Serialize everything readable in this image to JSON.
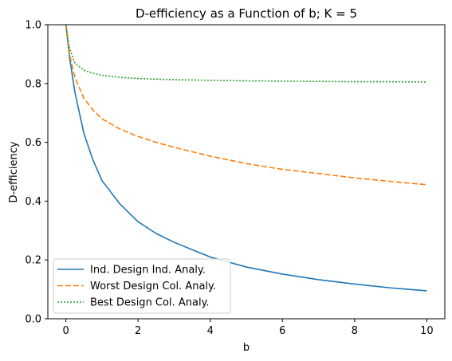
{
  "chart_data": {
    "type": "line",
    "title": "D-efficiency as a Function of b; K = 5",
    "xlabel": "b",
    "ylabel": "D-efficiency",
    "xlim": [
      -0.5,
      10.5
    ],
    "ylim": [
      0.0,
      1.0
    ],
    "xticks": [
      0,
      2,
      4,
      6,
      8,
      10
    ],
    "yticks": [
      0.0,
      0.2,
      0.4,
      0.6,
      0.8,
      1.0
    ],
    "xtick_labels": [
      "0",
      "2",
      "4",
      "6",
      "8",
      "10"
    ],
    "ytick_labels": [
      "0.0",
      "0.2",
      "0.4",
      "0.6",
      "0.8",
      "1.0"
    ],
    "legend_position": "lower-left",
    "grid": false,
    "x": [
      0.0,
      0.1,
      0.25,
      0.5,
      0.75,
      1.0,
      1.5,
      2.0,
      2.5,
      3.0,
      4.0,
      5.0,
      6.0,
      7.0,
      8.0,
      9.0,
      10.0
    ],
    "series": [
      {
        "name": "Ind. Design Ind. Analy.",
        "color": "#1f77b4",
        "dash": "solid",
        "values": [
          1.0,
          0.89,
          0.77,
          0.63,
          0.54,
          0.47,
          0.39,
          0.33,
          0.29,
          0.26,
          0.21,
          0.176,
          0.152,
          0.133,
          0.118,
          0.105,
          0.095
        ]
      },
      {
        "name": "Worst Design Col. Analy.",
        "color": "#ff7f0e",
        "dash": "dashed",
        "values": [
          1.0,
          0.9,
          0.82,
          0.75,
          0.71,
          0.68,
          0.645,
          0.62,
          0.6,
          0.583,
          0.553,
          0.528,
          0.508,
          0.494,
          0.479,
          0.467,
          0.456
        ]
      },
      {
        "name": "Best Design Col. Analy.",
        "color": "#2ca02c",
        "dash": "dotted",
        "values": [
          1.0,
          0.92,
          0.87,
          0.845,
          0.835,
          0.828,
          0.821,
          0.817,
          0.815,
          0.813,
          0.811,
          0.809,
          0.808,
          0.807,
          0.806,
          0.806,
          0.805
        ]
      }
    ]
  }
}
